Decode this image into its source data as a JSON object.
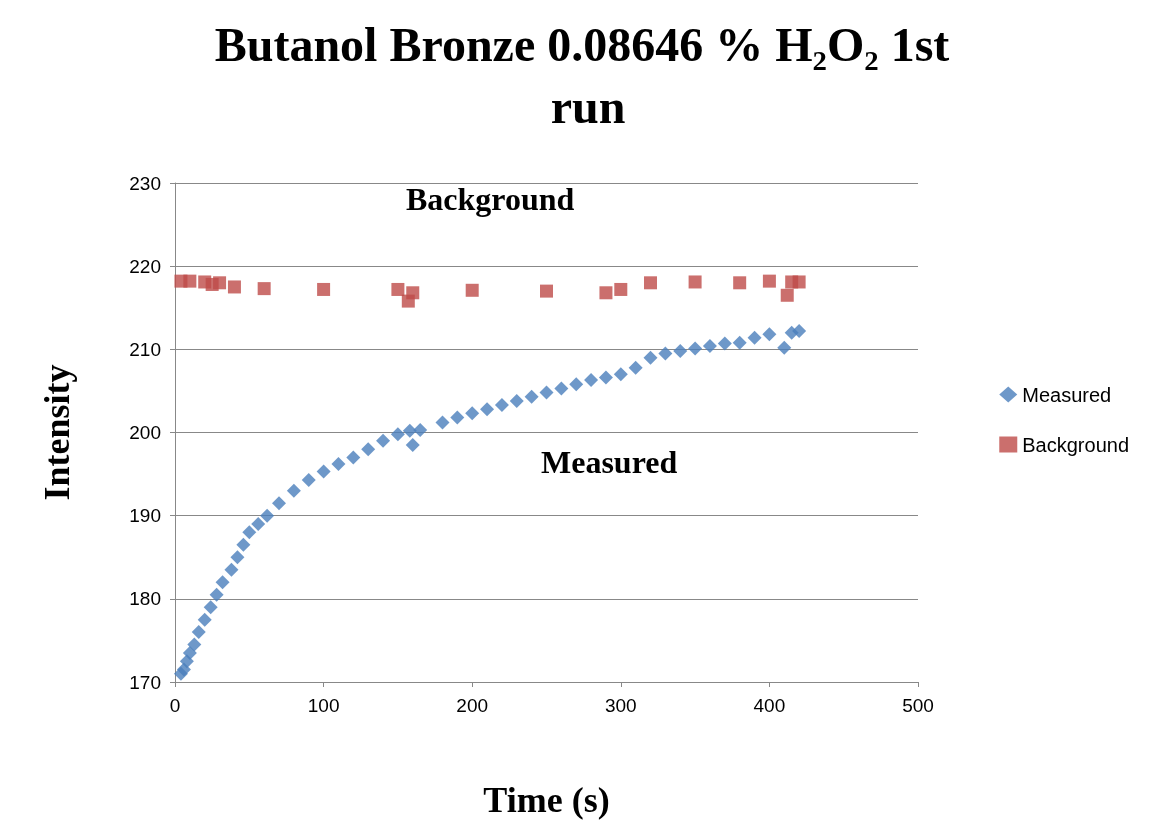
{
  "chart_data": {
    "type": "scatter",
    "title": "Butanol Bronze 0.08646 % H₂O₂ 1st run",
    "xlabel": "Time (s)",
    "ylabel": "Intensity",
    "xlim": [
      0,
      500
    ],
    "xticks": [
      0,
      100,
      200,
      300,
      400,
      500
    ],
    "ylim": [
      170,
      230
    ],
    "yticks": [
      170,
      180,
      190,
      200,
      210,
      220,
      230
    ],
    "grid": "y",
    "legend": "right",
    "annotations": [
      "Background",
      "Measured"
    ],
    "series": [
      {
        "name": "Measured",
        "color": "#4a7ebb",
        "marker": "diamond",
        "x": [
          4,
          6,
          8,
          10,
          13,
          16,
          20,
          24,
          28,
          32,
          38,
          42,
          46,
          50,
          56,
          62,
          70,
          80,
          90,
          100,
          110,
          120,
          130,
          140,
          150,
          158,
          160,
          165,
          180,
          190,
          200,
          210,
          220,
          230,
          240,
          250,
          260,
          270,
          280,
          290,
          300,
          310,
          320,
          330,
          340,
          350,
          360,
          370,
          380,
          390,
          400,
          410,
          415,
          420
        ],
        "values": [
          171,
          171.5,
          172.5,
          173.5,
          174.5,
          176,
          177.5,
          179,
          180.5,
          182,
          183.5,
          185,
          186.5,
          188,
          189,
          190,
          191.5,
          193,
          194.3,
          195.3,
          196.2,
          197,
          198,
          199,
          199.8,
          200.2,
          198.5,
          200.3,
          201.2,
          201.8,
          202.3,
          202.8,
          203.3,
          203.8,
          204.3,
          204.8,
          205.3,
          205.8,
          206.3,
          206.6,
          207,
          207.8,
          209,
          209.5,
          209.8,
          210.1,
          210.4,
          210.7,
          210.8,
          211.4,
          211.8,
          210.2,
          212,
          212.2
        ]
      },
      {
        "name": "Background",
        "color": "#be4b48",
        "marker": "square",
        "x": [
          4,
          10,
          20,
          25,
          30,
          40,
          60,
          100,
          150,
          157,
          160,
          200,
          250,
          290,
          300,
          320,
          350,
          380,
          400,
          412,
          415,
          420
        ],
        "values": [
          218.2,
          218.2,
          218.1,
          217.8,
          218,
          217.5,
          217.3,
          217.2,
          217.2,
          215.8,
          216.8,
          217.1,
          217,
          216.8,
          217.2,
          218,
          218.1,
          218,
          218.2,
          216.5,
          218.1,
          218.1
        ]
      }
    ]
  }
}
